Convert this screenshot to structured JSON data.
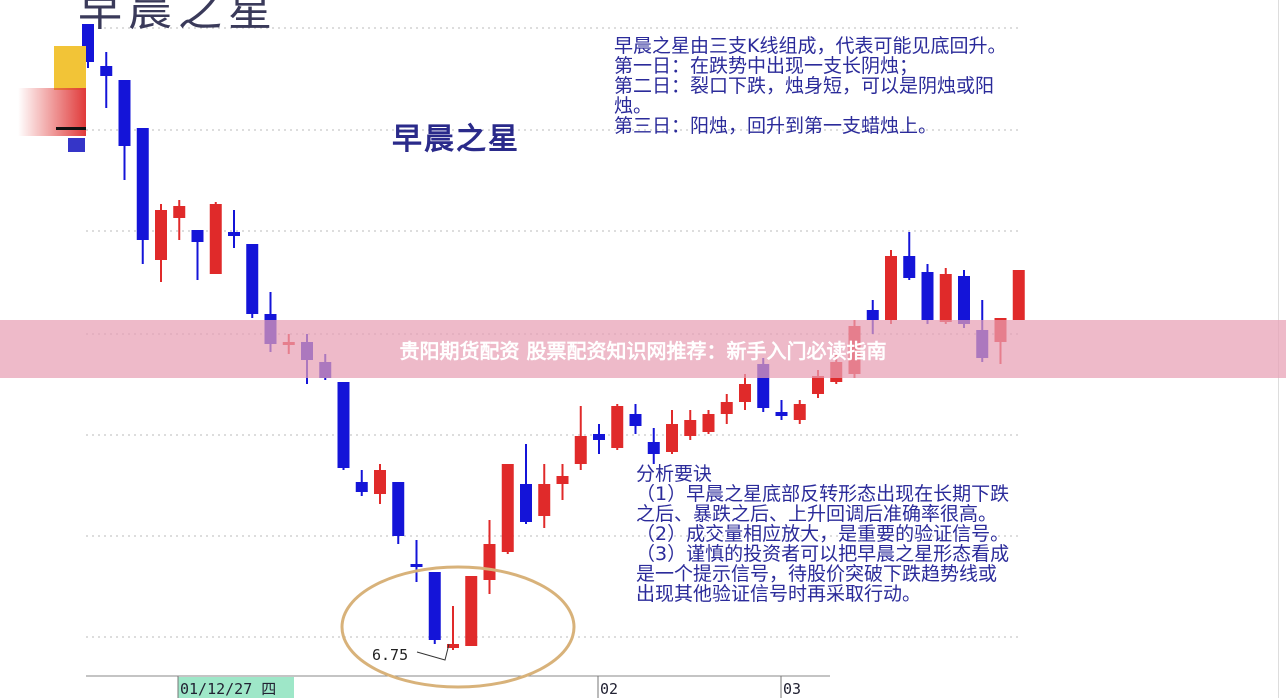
{
  "banner": {
    "text": "贵阳期货配资 股票配资知识网推荐：新手入门必读指南"
  },
  "top_title": "早晨之星",
  "chart_data": {
    "type": "candlestick",
    "title": "早晨之星",
    "colors": {
      "up": "#e02a2a",
      "down": "#1414d8"
    },
    "grid": true,
    "x_tick_labels": [
      "01/12/27 四",
      "02",
      "03"
    ],
    "annotations": [
      {
        "label": "6.75",
        "type": "low-price",
        "candle_index": 20
      },
      {
        "type": "ellipse",
        "note": "morning star pattern",
        "candles": [
          19,
          20,
          21
        ]
      }
    ],
    "description_text": "早晨之星由三支K线组成，代表可能见底回升。\n第一日：在跌势中出现一支长阴烛；\n第二日：裂口下跌，烛身短，可以是阴烛或阳烛。\n第三日：阳烛，回升到第一支蜡烛上。",
    "analysis_text": "分析要诀\n（1）早晨之星底部反转形态出现在长期下跌之后、暴跌之后、上升回调后准确率很高。（2）成交量相应放大，是重要的验证信号。（3）谨慎的投资者可以把早晨之星形态看成是一个提示信号，待股价突破下跌趋势线或出现其他验证信号时再采取行动。",
    "candles": [
      [
        9.88,
        9.88,
        9.66,
        9.69
      ],
      [
        9.67,
        9.74,
        9.46,
        9.62
      ],
      [
        9.6,
        9.6,
        9.1,
        9.27
      ],
      [
        9.36,
        9.36,
        8.68,
        8.8
      ],
      [
        8.7,
        8.98,
        8.59,
        8.95
      ],
      [
        8.91,
        9.0,
        8.8,
        8.97
      ],
      [
        8.85,
        8.85,
        8.6,
        8.79
      ],
      [
        8.63,
        8.99,
        8.63,
        8.98
      ],
      [
        8.84,
        8.95,
        8.76,
        8.82
      ],
      [
        8.78,
        8.78,
        8.41,
        8.43
      ],
      [
        8.43,
        8.54,
        8.24,
        8.28
      ],
      [
        8.28,
        8.33,
        8.23,
        8.29
      ],
      [
        8.29,
        8.33,
        8.08,
        8.2
      ],
      [
        8.19,
        8.23,
        8.1,
        8.11
      ],
      [
        8.09,
        8.09,
        7.65,
        7.66
      ],
      [
        7.59,
        7.65,
        7.52,
        7.54
      ],
      [
        7.53,
        7.68,
        7.48,
        7.65
      ],
      [
        7.59,
        7.59,
        7.28,
        7.32
      ],
      [
        7.18,
        7.3,
        7.09,
        7.17
      ],
      [
        7.14,
        7.14,
        6.78,
        6.8
      ],
      [
        6.76,
        6.97,
        6.75,
        6.78
      ],
      [
        6.77,
        7.12,
        6.77,
        7.12
      ],
      [
        7.1,
        7.4,
        7.03,
        7.28
      ],
      [
        7.24,
        7.68,
        7.23,
        7.68
      ],
      [
        7.58,
        7.78,
        7.38,
        7.39
      ],
      [
        7.42,
        7.68,
        7.36,
        7.58
      ],
      [
        7.58,
        7.68,
        7.5,
        7.62
      ],
      [
        7.68,
        7.97,
        7.65,
        7.82
      ],
      [
        7.83,
        7.88,
        7.73,
        7.8
      ],
      [
        7.76,
        7.98,
        7.75,
        7.97
      ],
      [
        7.93,
        7.98,
        7.83,
        7.87
      ],
      [
        7.79,
        7.86,
        7.68,
        7.73
      ],
      [
        7.74,
        7.95,
        7.73,
        7.88
      ],
      [
        7.82,
        7.95,
        7.8,
        7.9
      ],
      [
        7.84,
        7.95,
        7.83,
        7.93
      ],
      [
        7.93,
        8.03,
        7.88,
        7.99
      ],
      [
        7.99,
        8.13,
        7.95,
        8.08
      ],
      [
        8.18,
        8.21,
        7.94,
        7.96
      ],
      [
        7.94,
        8.0,
        7.9,
        7.92
      ],
      [
        7.9,
        8.0,
        7.88,
        7.98
      ],
      [
        8.03,
        8.15,
        8.01,
        8.12
      ],
      [
        8.09,
        8.23,
        8.08,
        8.19
      ],
      [
        8.13,
        8.4,
        8.11,
        8.37
      ],
      [
        8.45,
        8.5,
        8.33,
        8.4
      ],
      [
        8.4,
        8.75,
        8.38,
        8.72
      ],
      [
        8.72,
        8.84,
        8.6,
        8.61
      ],
      [
        8.64,
        8.68,
        8.38,
        8.4
      ],
      [
        8.39,
        8.66,
        8.38,
        8.63
      ],
      [
        8.62,
        8.65,
        8.36,
        8.38
      ],
      [
        8.35,
        8.5,
        8.19,
        8.21
      ],
      [
        8.29,
        8.41,
        8.18,
        8.41
      ],
      [
        8.4,
        8.65,
        8.4,
        8.65
      ]
    ],
    "candles_format": [
      "open",
      "high",
      "low",
      "close"
    ]
  }
}
